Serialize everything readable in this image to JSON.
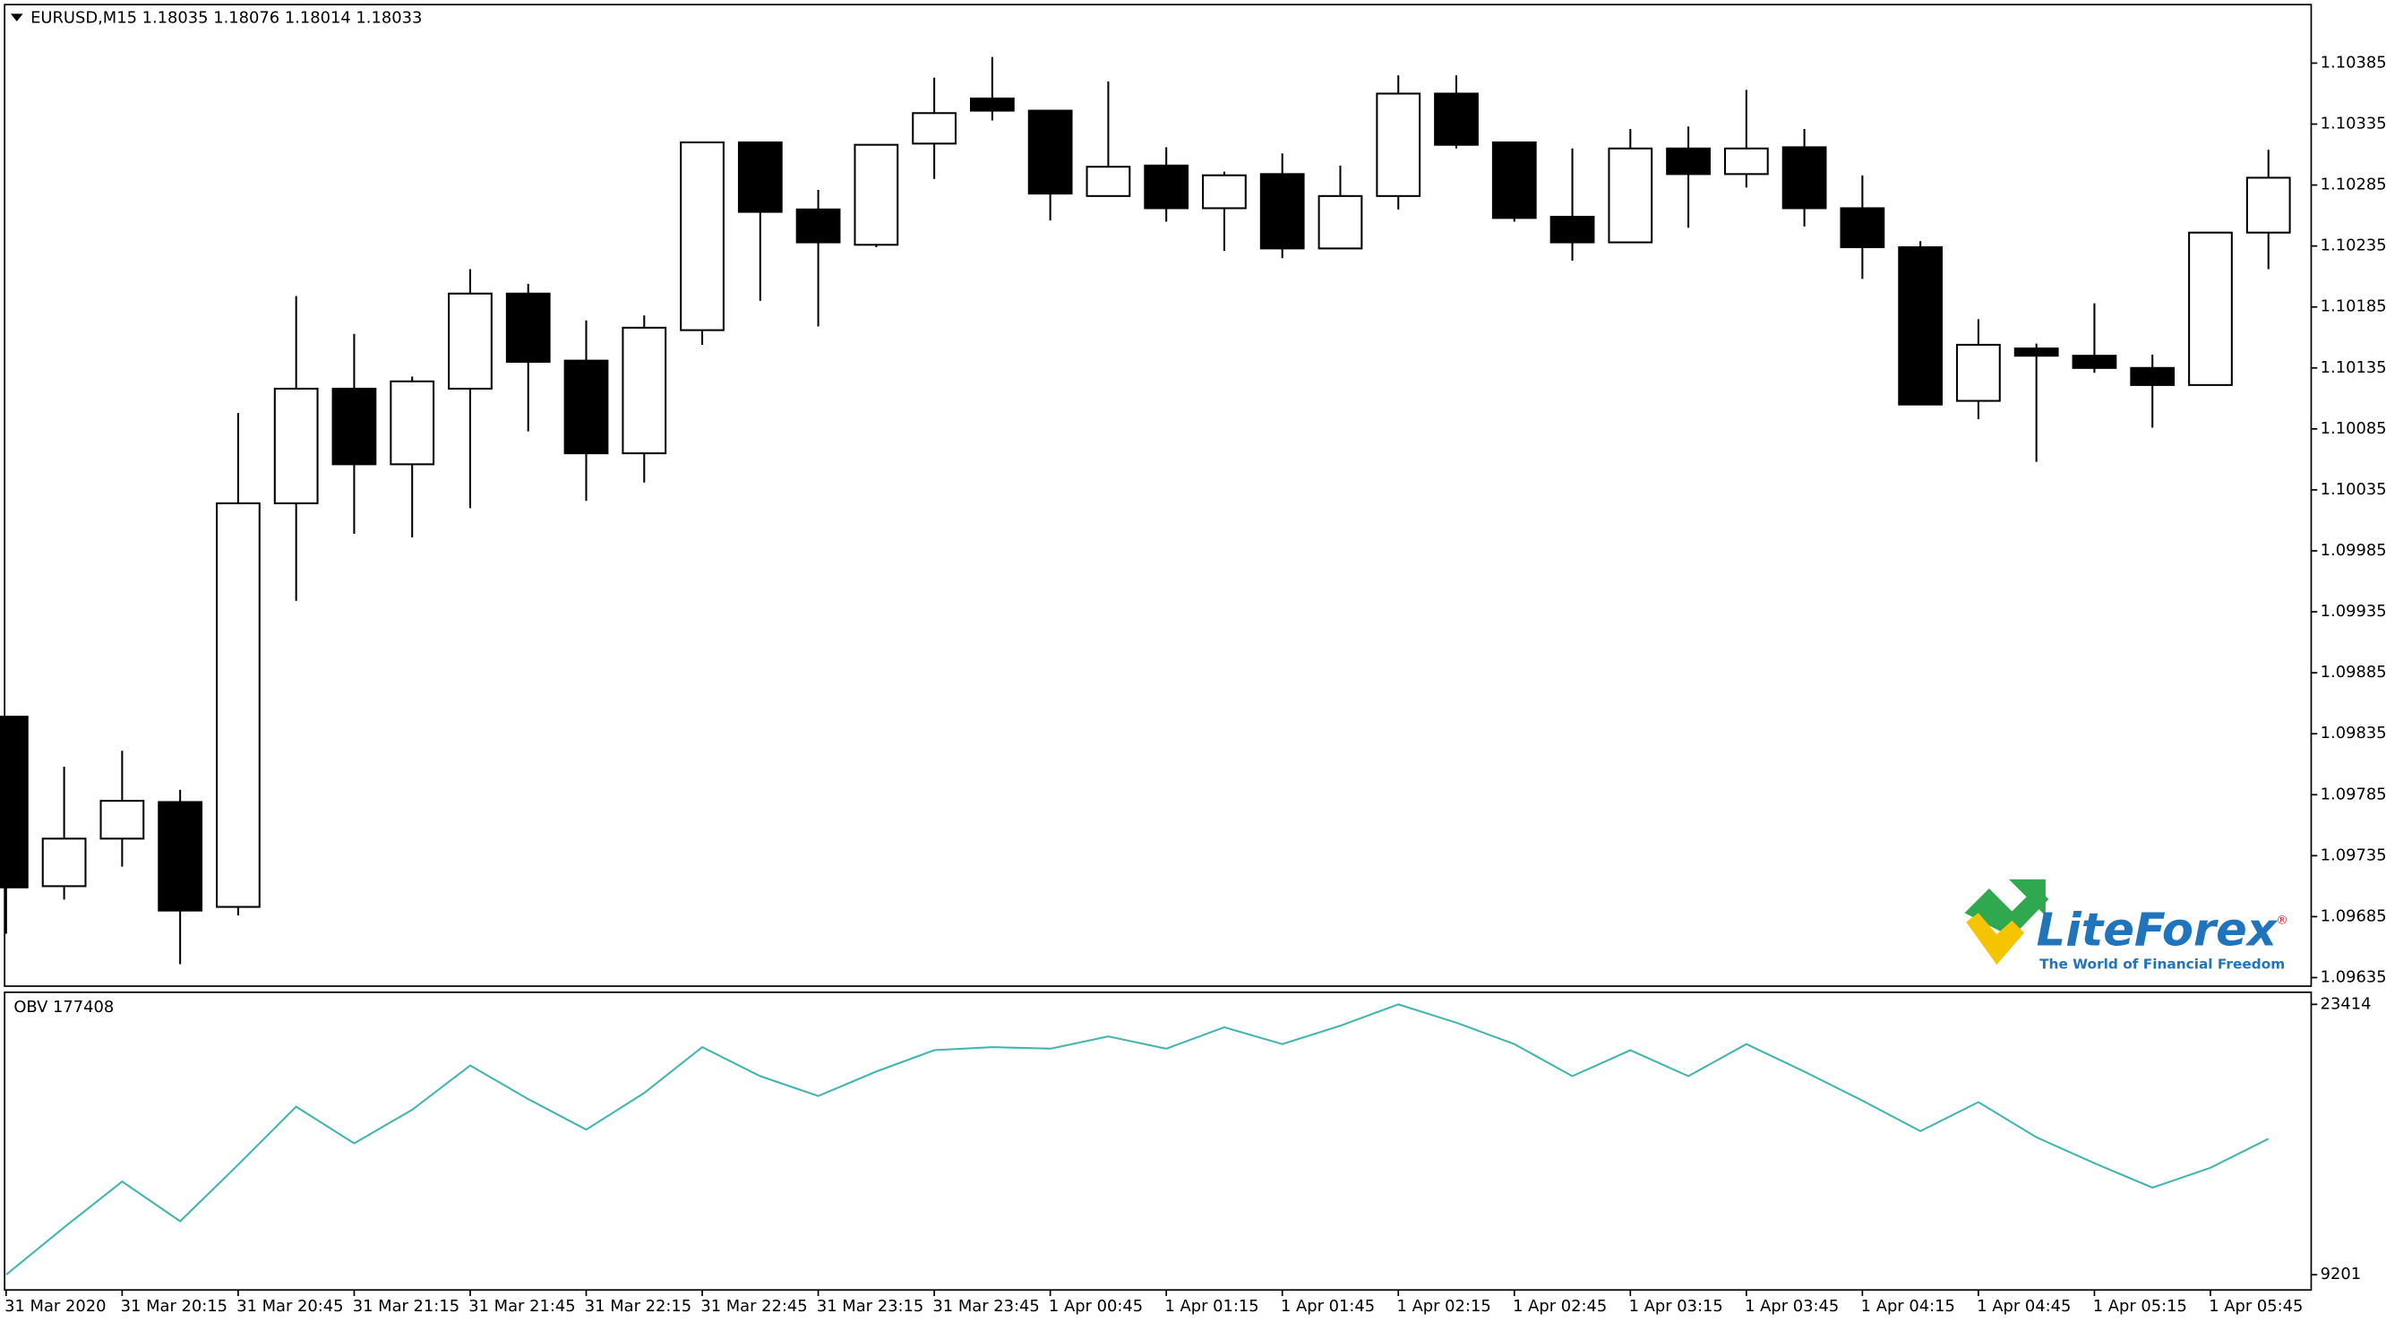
{
  "chart_data": [
    {
      "type": "candlestick",
      "title": "EURUSD,M15  1.18035 1.18076 1.18014 1.18033",
      "series": [
        {
          "open": [
            1.09849,
            1.0971,
            1.09749,
            1.09779,
            1.09693,
            1.10024,
            1.10118,
            1.10056,
            1.10118,
            1.10196,
            1.10141,
            1.10065,
            1.10166,
            1.1032,
            1.10265,
            1.10236,
            1.10319,
            1.10356,
            1.10346,
            1.10276,
            1.10301,
            1.10266,
            1.10294,
            1.10233,
            1.10276,
            1.1036,
            1.1032,
            1.10259,
            1.10238,
            1.10315,
            1.10294,
            1.10316,
            1.10266,
            1.10234,
            1.10108,
            1.10151,
            1.10145,
            1.10135,
            1.10121,
            1.10246
          ],
          "high": [
            1.09849,
            1.09808,
            1.09821,
            1.09789,
            1.10098,
            1.10194,
            1.10163,
            1.10128,
            1.10216,
            1.10204,
            1.10174,
            1.10178,
            1.1032,
            1.1032,
            1.10281,
            1.10318,
            1.10373,
            1.1039,
            1.10346,
            1.1037,
            1.10316,
            1.10296,
            1.10311,
            1.10301,
            1.10375,
            1.10375,
            1.1032,
            1.10315,
            1.10331,
            1.10333,
            1.10363,
            1.10331,
            1.10293,
            1.10239,
            1.10175,
            1.10155,
            1.10188,
            1.10146,
            1.10246,
            1.10314
          ],
          "low": [
            1.09671,
            1.09699,
            1.09726,
            1.09646,
            1.09686,
            1.09944,
            1.09999,
            1.09996,
            1.1002,
            1.10083,
            1.10026,
            1.10041,
            1.10154,
            1.1019,
            1.10169,
            1.10234,
            1.1029,
            1.10338,
            1.10256,
            1.10276,
            1.10255,
            1.10231,
            1.10225,
            1.10233,
            1.10265,
            1.10315,
            1.10255,
            1.10223,
            1.10238,
            1.1025,
            1.10283,
            1.10251,
            1.10208,
            1.10105,
            1.10093,
            1.10058,
            1.10131,
            1.10086,
            1.10121,
            1.10216
          ],
          "close": [
            1.09709,
            1.09749,
            1.0978,
            1.0969,
            1.10024,
            1.10118,
            1.10056,
            1.10124,
            1.10196,
            1.1014,
            1.10065,
            1.10168,
            1.1032,
            1.10263,
            1.10238,
            1.10318,
            1.10344,
            1.10346,
            1.10278,
            1.103,
            1.10266,
            1.10293,
            1.10233,
            1.10276,
            1.1036,
            1.10318,
            1.10258,
            1.10238,
            1.10315,
            1.10294,
            1.10315,
            1.10266,
            1.10234,
            1.10105,
            1.10154,
            1.10145,
            1.10135,
            1.10121,
            1.10246,
            1.10291
          ]
        }
      ],
      "up_color": "#ffffff",
      "down_color": "#000000",
      "ylim": [
        1.09628,
        1.10433
      ],
      "yticks": [
        1.10385,
        1.10335,
        1.10285,
        1.10235,
        1.10185,
        1.10135,
        1.10085,
        1.10035,
        1.09985,
        1.09935,
        1.09885,
        1.09835,
        1.09785,
        1.09735,
        1.09685,
        1.09635
      ]
    },
    {
      "type": "line",
      "title": "OBV 177408",
      "categories": [
        "31 Mar 2020",
        null,
        "31 Mar 20:15",
        null,
        "31 Mar 20:45",
        null,
        "31 Mar 21:15",
        null,
        "31 Mar 21:45",
        null,
        "31 Mar 22:15",
        null,
        "31 Mar 22:45",
        null,
        "31 Mar 23:15",
        null,
        "31 Mar 23:45",
        null,
        "1 Apr 00:45",
        null,
        "1 Apr 01:15",
        null,
        "1 Apr 01:45",
        null,
        "1 Apr 02:15",
        null,
        "1 Apr 02:45",
        null,
        "1 Apr 03:15",
        null,
        "1 Apr 03:45",
        null,
        "1 Apr 04:15",
        null,
        "1 Apr 04:45",
        null,
        "1 Apr 05:15",
        null,
        "1 Apr 05:45",
        null
      ],
      "series": [
        {
          "color": "#3fb5ae",
          "values": [
            9201,
            11690,
            14099,
            12012,
            14983,
            18034,
            16107,
            17873,
            20202,
            18436,
            16830,
            18757,
            21166,
            19640,
            18596,
            19881,
            21005,
            21166,
            21085,
            21728,
            21085,
            22210,
            21326,
            22290,
            23414,
            22451,
            21326,
            19640,
            21005,
            19640,
            21326,
            19881,
            18355,
            16749,
            18275,
            16428,
            15063,
            13778,
            14822,
            16348
          ]
        }
      ],
      "ylim": [
        8400,
        24050
      ],
      "yticks": [
        9201,
        23414
      ]
    }
  ],
  "logo": {
    "name": "LiteForex",
    "mark": "®",
    "tagline": "The World of Financial Freedom"
  }
}
